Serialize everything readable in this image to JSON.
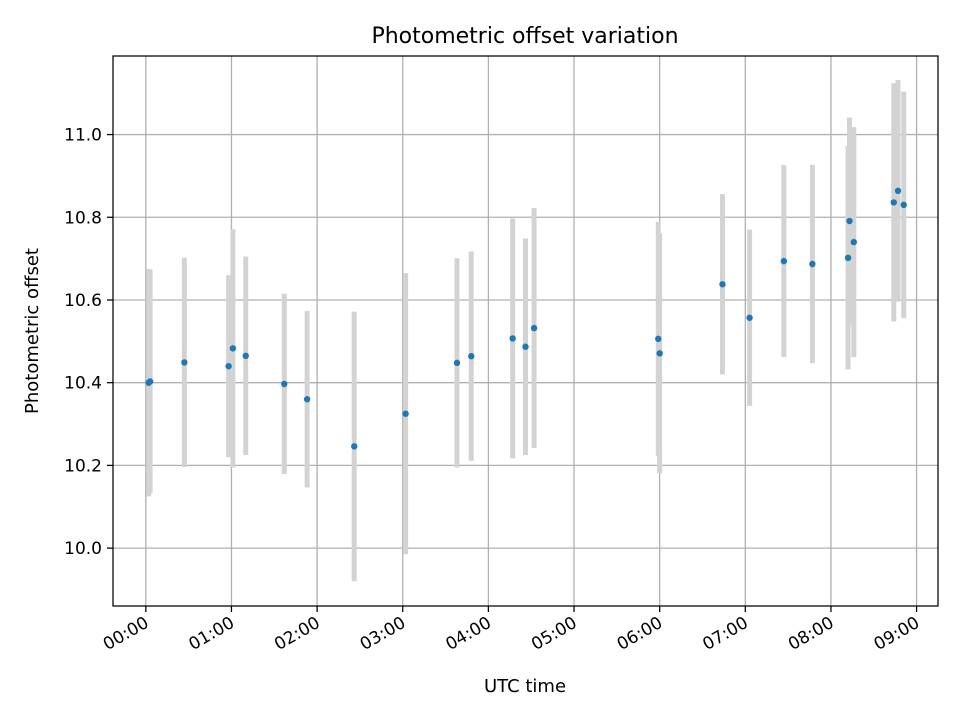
{
  "chart_data": {
    "type": "scatter",
    "title": "Photometric offset variation",
    "xlabel": "UTC time",
    "ylabel": "Photometric offset",
    "x_unit": "UTC",
    "x_ticks": [
      "00:00",
      "01:00",
      "02:00",
      "03:00",
      "04:00",
      "05:00",
      "06:00",
      "07:00",
      "08:00",
      "09:00"
    ],
    "y_ticks": [
      "10.0",
      "10.2",
      "10.4",
      "10.6",
      "10.8",
      "11.0"
    ],
    "xlim": [
      "23:37",
      "09:15"
    ],
    "ylim": [
      9.86,
      11.19
    ],
    "grid": true,
    "legend": "none",
    "marker_color": "#1f77b4",
    "errorbar_color": "#d3d3d3",
    "series": [
      {
        "points": [
          {
            "x": "00:02",
            "y": 10.4,
            "err": 0.275
          },
          {
            "x": "00:03",
            "y": 10.403,
            "err": 0.27
          },
          {
            "x": "00:27",
            "y": 10.449,
            "err": 0.253
          },
          {
            "x": "00:58",
            "y": 10.44,
            "err": 0.22
          },
          {
            "x": "01:01",
            "y": 10.483,
            "err": 0.288
          },
          {
            "x": "01:10",
            "y": 10.465,
            "err": 0.24
          },
          {
            "x": "01:37",
            "y": 10.397,
            "err": 0.218
          },
          {
            "x": "01:53",
            "y": 10.36,
            "err": 0.213
          },
          {
            "x": "02:26",
            "y": 10.246,
            "err": 0.326
          },
          {
            "x": "03:02",
            "y": 10.325,
            "err": 0.34
          },
          {
            "x": "03:38",
            "y": 10.448,
            "err": 0.253
          },
          {
            "x": "03:48",
            "y": 10.464,
            "err": 0.253
          },
          {
            "x": "04:17",
            "y": 10.507,
            "err": 0.29
          },
          {
            "x": "04:26",
            "y": 10.487,
            "err": 0.262
          },
          {
            "x": "04:32",
            "y": 10.532,
            "err": 0.29
          },
          {
            "x": "05:59",
            "y": 10.506,
            "err": 0.283
          },
          {
            "x": "06:00",
            "y": 10.471,
            "err": 0.29
          },
          {
            "x": "06:44",
            "y": 10.638,
            "err": 0.218
          },
          {
            "x": "07:03",
            "y": 10.557,
            "err": 0.213
          },
          {
            "x": "07:27",
            "y": 10.694,
            "err": 0.232
          },
          {
            "x": "07:47",
            "y": 10.687,
            "err": 0.24
          },
          {
            "x": "08:12",
            "y": 10.702,
            "err": 0.27
          },
          {
            "x": "08:13",
            "y": 10.791,
            "err": 0.25
          },
          {
            "x": "08:16",
            "y": 10.74,
            "err": 0.278
          },
          {
            "x": "08:44",
            "y": 10.836,
            "err": 0.288
          },
          {
            "x": "08:47",
            "y": 10.864,
            "err": 0.268
          },
          {
            "x": "08:51",
            "y": 10.83,
            "err": 0.274
          }
        ]
      }
    ]
  }
}
